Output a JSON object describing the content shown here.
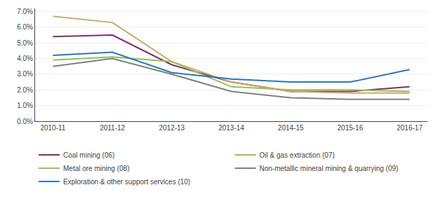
{
  "chart_data": {
    "type": "line",
    "categories": [
      "2010-11",
      "2011-12",
      "2012-13",
      "2013-14",
      "2014-15",
      "2015-16",
      "2016-17"
    ],
    "series": [
      {
        "name": "Coal mining (06)",
        "color": "#7B3060",
        "values": [
          0.054,
          0.055,
          0.036,
          0.025,
          0.019,
          0.019,
          0.022
        ]
      },
      {
        "name": "Oil & gas extraction (07)",
        "color": "#92C353",
        "values": [
          0.039,
          0.041,
          0.038,
          0.022,
          0.02,
          0.02,
          0.019
        ]
      },
      {
        "name": "Metal ore mining (08)",
        "color": "#C9A96E",
        "values": [
          0.067,
          0.063,
          0.038,
          0.025,
          0.019,
          0.018,
          0.018
        ]
      },
      {
        "name": "Non-metallic mineral mining & quarrying (09)",
        "color": "#808080",
        "values": [
          0.035,
          0.04,
          0.03,
          0.019,
          0.015,
          0.014,
          0.014
        ]
      },
      {
        "name": "Exploration & other support services (10)",
        "color": "#2E75B6",
        "values": [
          0.042,
          0.044,
          0.031,
          0.027,
          0.025,
          0.025,
          0.033
        ]
      }
    ],
    "ylim": [
      0.0,
      0.072
    ],
    "yticks": [
      {
        "value": 0.0,
        "label": "0.0%"
      },
      {
        "value": 0.01,
        "label": "1.0%"
      },
      {
        "value": 0.02,
        "label": "2.0%"
      },
      {
        "value": 0.03,
        "label": "3.0%"
      },
      {
        "value": 0.04,
        "label": "4.0%"
      },
      {
        "value": 0.05,
        "label": "5.0%"
      },
      {
        "value": 0.06,
        "label": "6.0%"
      },
      {
        "value": 0.07,
        "label": "7.0%"
      }
    ],
    "grid": true,
    "legend": "lower left"
  }
}
